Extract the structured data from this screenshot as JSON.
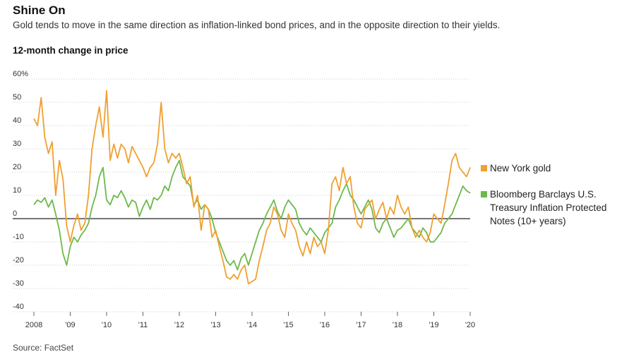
{
  "header": {
    "title": "Shine On",
    "subtitle": "Gold tends to move in the same direction as inflation-linked bond prices, and in the opposite direction to their yields.",
    "y_axis_title": "12-month change in price"
  },
  "source": "Source: FactSet",
  "colors": {
    "gold": "#f0a030",
    "tips": "#6cb94a",
    "grid": "#cfcfcf",
    "zero": "#222222",
    "text": "#333333"
  },
  "chart_data": {
    "type": "line",
    "title": "12-month change in price",
    "xlabel": "",
    "ylabel": "",
    "xlim": [
      2008.0,
      2020.0
    ],
    "ylim": [
      -40,
      60
    ],
    "y_ticks": [
      {
        "value": 60,
        "label": "60%"
      },
      {
        "value": 50,
        "label": "50"
      },
      {
        "value": 40,
        "label": "40"
      },
      {
        "value": 30,
        "label": "30"
      },
      {
        "value": 20,
        "label": "20"
      },
      {
        "value": 10,
        "label": "10"
      },
      {
        "value": 0,
        "label": "0"
      },
      {
        "value": -10,
        "label": "-10"
      },
      {
        "value": -20,
        "label": "-20"
      },
      {
        "value": -30,
        "label": "-30"
      },
      {
        "value": -40,
        "label": "-40"
      }
    ],
    "x_ticks": [
      {
        "value": 2008,
        "label": "2008"
      },
      {
        "value": 2009,
        "label": "'09"
      },
      {
        "value": 2010,
        "label": "'10"
      },
      {
        "value": 2011,
        "label": "'11"
      },
      {
        "value": 2012,
        "label": "'12"
      },
      {
        "value": 2013,
        "label": "'13"
      },
      {
        "value": 2014,
        "label": "'14"
      },
      {
        "value": 2015,
        "label": "'15"
      },
      {
        "value": 2016,
        "label": "'16"
      },
      {
        "value": 2017,
        "label": "'17"
      },
      {
        "value": 2018,
        "label": "'18"
      },
      {
        "value": 2019,
        "label": "'19"
      },
      {
        "value": 2020,
        "label": "'20"
      }
    ],
    "grid": true,
    "legend_position": "right",
    "series": [
      {
        "name": "New York gold",
        "x": [
          2008.0,
          2008.1,
          2008.2,
          2008.3,
          2008.4,
          2008.5,
          2008.6,
          2008.7,
          2008.8,
          2008.9,
          2009.0,
          2009.1,
          2009.2,
          2009.3,
          2009.4,
          2009.5,
          2009.6,
          2009.7,
          2009.8,
          2009.9,
          2010.0,
          2010.1,
          2010.2,
          2010.3,
          2010.4,
          2010.5,
          2010.6,
          2010.7,
          2010.8,
          2010.9,
          2011.0,
          2011.1,
          2011.2,
          2011.3,
          2011.4,
          2011.5,
          2011.6,
          2011.7,
          2011.8,
          2011.9,
          2012.0,
          2012.1,
          2012.2,
          2012.3,
          2012.4,
          2012.5,
          2012.6,
          2012.7,
          2012.8,
          2012.9,
          2013.0,
          2013.1,
          2013.2,
          2013.3,
          2013.4,
          2013.5,
          2013.6,
          2013.7,
          2013.8,
          2013.9,
          2014.0,
          2014.1,
          2014.2,
          2014.3,
          2014.4,
          2014.5,
          2014.6,
          2014.7,
          2014.8,
          2014.9,
          2015.0,
          2015.1,
          2015.2,
          2015.3,
          2015.4,
          2015.5,
          2015.6,
          2015.7,
          2015.8,
          2015.9,
          2016.0,
          2016.1,
          2016.2,
          2016.3,
          2016.4,
          2016.5,
          2016.6,
          2016.7,
          2016.8,
          2016.9,
          2017.0,
          2017.1,
          2017.2,
          2017.3,
          2017.4,
          2017.5,
          2017.6,
          2017.7,
          2017.8,
          2017.9,
          2018.0,
          2018.1,
          2018.2,
          2018.3,
          2018.4,
          2018.5,
          2018.6,
          2018.7,
          2018.8,
          2018.9,
          2019.0,
          2019.1,
          2019.2,
          2019.3,
          2019.4,
          2019.5,
          2019.6,
          2019.7,
          2019.8,
          2019.9,
          2020.0
        ],
        "values": [
          43,
          40,
          52,
          35,
          28,
          33,
          10,
          25,
          17,
          -3,
          -10,
          -3,
          2,
          -5,
          -2,
          10,
          30,
          40,
          48,
          35,
          55,
          25,
          32,
          26,
          32,
          30,
          24,
          31,
          28,
          25,
          22,
          18,
          22,
          24,
          32,
          50,
          30,
          24,
          28,
          26,
          28,
          22,
          15,
          18,
          5,
          10,
          -5,
          6,
          4,
          -8,
          -5,
          -12,
          -18,
          -25,
          -26,
          -24,
          -26,
          -22,
          -20,
          -28,
          -27,
          -26,
          -18,
          -12,
          -5,
          -2,
          5,
          2,
          -5,
          -8,
          2,
          -2,
          -5,
          -12,
          -16,
          -10,
          -15,
          -8,
          -12,
          -10,
          -15,
          -5,
          15,
          18,
          12,
          22,
          15,
          18,
          5,
          -2,
          -4,
          4,
          6,
          8,
          0,
          4,
          7,
          0,
          5,
          2,
          10,
          5,
          2,
          5,
          -4,
          -8,
          -5,
          -8,
          -10,
          -6,
          2,
          0,
          -2,
          6,
          15,
          25,
          28,
          22,
          20,
          18,
          22
        ]
      },
      {
        "name": "Bloomberg Barclays U.S. Treasury Inflation Protected Notes (10+ years)",
        "x": [
          2008.0,
          2008.1,
          2008.2,
          2008.3,
          2008.4,
          2008.5,
          2008.6,
          2008.7,
          2008.8,
          2008.9,
          2009.0,
          2009.1,
          2009.2,
          2009.3,
          2009.4,
          2009.5,
          2009.6,
          2009.7,
          2009.8,
          2009.9,
          2010.0,
          2010.1,
          2010.2,
          2010.3,
          2010.4,
          2010.5,
          2010.6,
          2010.7,
          2010.8,
          2010.9,
          2011.0,
          2011.1,
          2011.2,
          2011.3,
          2011.4,
          2011.5,
          2011.6,
          2011.7,
          2011.8,
          2011.9,
          2012.0,
          2012.1,
          2012.2,
          2012.3,
          2012.4,
          2012.5,
          2012.6,
          2012.7,
          2012.8,
          2012.9,
          2013.0,
          2013.1,
          2013.2,
          2013.3,
          2013.4,
          2013.5,
          2013.6,
          2013.7,
          2013.8,
          2013.9,
          2014.0,
          2014.1,
          2014.2,
          2014.3,
          2014.4,
          2014.5,
          2014.6,
          2014.7,
          2014.8,
          2014.9,
          2015.0,
          2015.1,
          2015.2,
          2015.3,
          2015.4,
          2015.5,
          2015.6,
          2015.7,
          2015.8,
          2015.9,
          2016.0,
          2016.1,
          2016.2,
          2016.3,
          2016.4,
          2016.5,
          2016.6,
          2016.7,
          2016.8,
          2016.9,
          2017.0,
          2017.1,
          2017.2,
          2017.3,
          2017.4,
          2017.5,
          2017.6,
          2017.7,
          2017.8,
          2017.9,
          2018.0,
          2018.1,
          2018.2,
          2018.3,
          2018.4,
          2018.5,
          2018.6,
          2018.7,
          2018.8,
          2018.9,
          2019.0,
          2019.1,
          2019.2,
          2019.3,
          2019.4,
          2019.5,
          2019.6,
          2019.7,
          2019.8,
          2019.9,
          2020.0
        ],
        "values": [
          6,
          8,
          7,
          9,
          5,
          8,
          2,
          -5,
          -15,
          -20,
          -12,
          -8,
          -10,
          -7,
          -5,
          -2,
          5,
          10,
          18,
          22,
          8,
          6,
          10,
          9,
          12,
          9,
          5,
          8,
          7,
          1,
          5,
          8,
          4,
          9,
          8,
          10,
          14,
          12,
          18,
          22,
          25,
          18,
          16,
          14,
          6,
          8,
          4,
          6,
          4,
          0,
          -6,
          -10,
          -14,
          -18,
          -20,
          -18,
          -22,
          -17,
          -15,
          -20,
          -15,
          -10,
          -5,
          -2,
          2,
          5,
          8,
          3,
          0,
          5,
          8,
          6,
          4,
          -2,
          -5,
          -7,
          -4,
          -6,
          -8,
          -10,
          -6,
          -4,
          -2,
          5,
          8,
          12,
          15,
          10,
          8,
          5,
          2,
          5,
          8,
          4,
          -4,
          -6,
          -2,
          0,
          -4,
          -8,
          -5,
          -4,
          -2,
          0,
          -4,
          -6,
          -8,
          -4,
          -6,
          -10,
          -10,
          -8,
          -6,
          -2,
          0,
          2,
          6,
          10,
          14,
          12,
          11
        ]
      }
    ]
  }
}
